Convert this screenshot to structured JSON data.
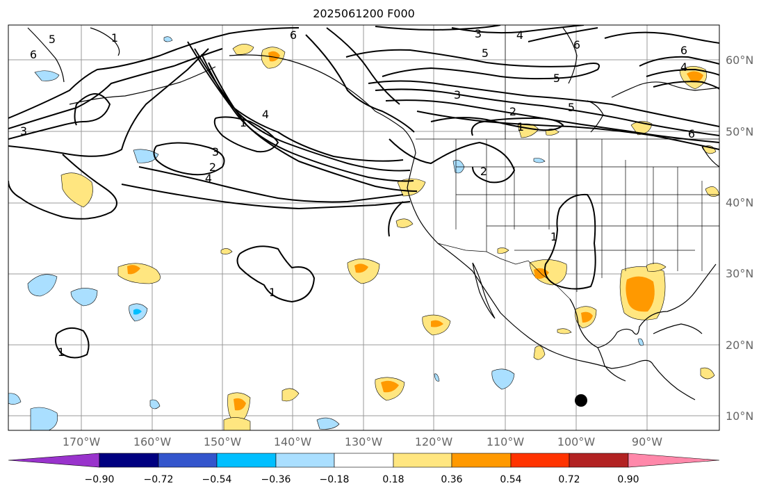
{
  "title": "2025061200 F000",
  "lat_labels": [
    "60°N",
    "50°N",
    "40°N",
    "30°N",
    "20°N",
    "10°N"
  ],
  "lon_labels": [
    "170°W",
    "160°W",
    "150°W",
    "140°W",
    "130°W",
    "120°W",
    "110°W",
    "100°W",
    "90°W"
  ],
  "colorbar": {
    "tick_labels": [
      "−0.90",
      "−0.72",
      "−0.54",
      "−0.36",
      "−0.18",
      "0.18",
      "0.36",
      "0.54",
      "0.72",
      "0.90"
    ],
    "colors": [
      "#9933cc",
      "#000080",
      "#3355cc",
      "#00bfff",
      "#aadfff",
      "#ffffff",
      "#ffe680",
      "#ff9900",
      "#ff3300",
      "#b22222",
      "#ff88aa"
    ]
  },
  "contour_labels": [
    "5",
    "6",
    "1",
    "6",
    "3",
    "4",
    "5",
    "6",
    "6",
    "4",
    "5",
    "3",
    "2",
    "1",
    "5",
    "6",
    "3",
    "4",
    "1",
    "3",
    "2",
    "4",
    "2",
    "1",
    "1",
    "1"
  ],
  "marker": "black-dot"
}
